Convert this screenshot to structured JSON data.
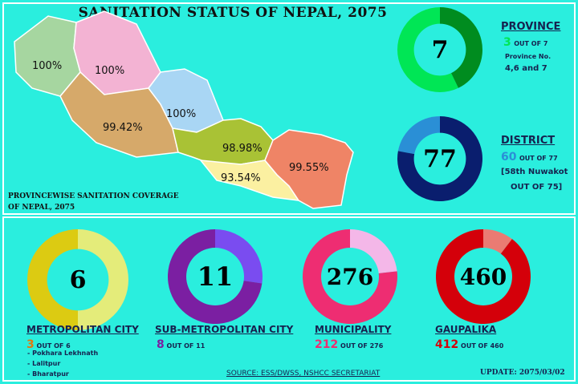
{
  "title": "SANITATION STATUS OF NEPAL, 2075",
  "map": {
    "caption_line1": "PROVINCEWISE SANITATION COVERAGE",
    "caption_line2": "OF NEPAL, 2075",
    "provinces": [
      {
        "label": "100%",
        "color": "#a6d6a0"
      },
      {
        "label": "100%",
        "color": "#f3b3d3"
      },
      {
        "label": "99.42%",
        "color": "#d6a96a"
      },
      {
        "label": "100%",
        "color": "#a9d6f4"
      },
      {
        "label": "98.98%",
        "color": "#a9c235"
      },
      {
        "label": "93.54%",
        "color": "#fbf0a1"
      },
      {
        "label": "99.55%",
        "color": "#ef8466"
      }
    ]
  },
  "province": {
    "number": "7",
    "heading": "PROVINCE",
    "count": "3",
    "of_text": "OUT OF 7",
    "note1": "Province No.",
    "note2": "4,6 and 7",
    "fraction": 0.4286,
    "color_main": "#00e655",
    "color_part": "#008c1f"
  },
  "district": {
    "number": "77",
    "heading": "DISTRICT",
    "count": "60",
    "of_text": "OUT OF 77",
    "note1": "[58th Nuwakot",
    "note2": "OUT OF 75]",
    "fraction": 0.779,
    "color_main": "#0a1e6e",
    "color_part": "#2a8fd6"
  },
  "bottom": [
    {
      "number": "6",
      "heading": "METROPOLITAN CITY",
      "count": "3",
      "of_text": "OUT OF 6",
      "fraction": 0.5,
      "color_main": "#dccb12",
      "color_part": "#e4ec7a",
      "count_color": "#e07a10",
      "notes": [
        "- Pokhara Lekhnath",
        "- Lalitpur",
        "- Bharatpur"
      ]
    },
    {
      "number": "11",
      "heading": "SUB-METROPOLITAN CITY",
      "count": "8",
      "of_text": "OUT OF 11",
      "fraction": 0.727,
      "color_main": "#7b1fa2",
      "color_part": "#7a4cf0",
      "count_color": "#7b1fa2",
      "notes": []
    },
    {
      "number": "276",
      "heading": "MUNICIPALITY",
      "count": "212",
      "of_text": "OUT OF 276",
      "fraction": 0.768,
      "color_main": "#ee2d72",
      "color_part": "#f4b7e8",
      "count_color": "#ee2d72",
      "notes": []
    },
    {
      "number": "460",
      "heading": "GAUPALIKA",
      "count": "412",
      "of_text": "OUT OF 460",
      "fraction": 0.896,
      "color_main": "#d4000a",
      "color_part": "#ea7b73",
      "count_color": "#d4000a",
      "notes": []
    }
  ],
  "footer": {
    "source": "SOURCE: ESS/DWSS, NSHCC SECRETARIAT",
    "update": "UPDATE: 2075/03/02"
  }
}
